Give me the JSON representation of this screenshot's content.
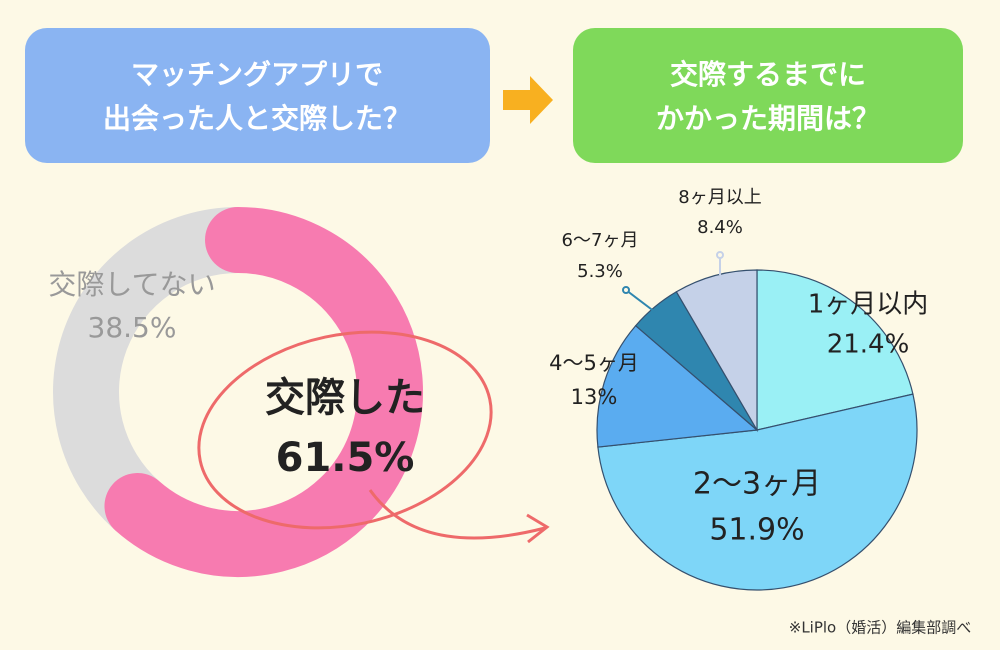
{
  "header": {
    "left": [
      "マッチングアプリで",
      "出会った人と交際した？"
    ],
    "right": [
      "交際するまでに",
      "かかった期間は？"
    ]
  },
  "chart_data": [
    {
      "type": "donut",
      "categories": [
        "交際した",
        "交際してない"
      ],
      "values": [
        61.5,
        38.5
      ],
      "value_labels": [
        "61.5%",
        "38.5%"
      ],
      "colors": [
        "#f77bb0",
        "#dcdcdc"
      ]
    },
    {
      "type": "pie",
      "categories": [
        "1ヶ月以内",
        "2〜3ヶ月",
        "4〜5ヶ月",
        "6〜7ヶ月",
        "8ヶ月以上"
      ],
      "values": [
        21.4,
        51.9,
        13,
        5.3,
        8.4
      ],
      "value_labels": [
        "21.4%",
        "51.9%",
        "13%",
        "5.3%",
        "8.4%"
      ],
      "colors": [
        "#9af0f5",
        "#7ed6f8",
        "#5aacf0",
        "#2f86af",
        "#c5d1e8"
      ]
    }
  ],
  "footnote": "※LiPlo（婚活）編集部調べ"
}
